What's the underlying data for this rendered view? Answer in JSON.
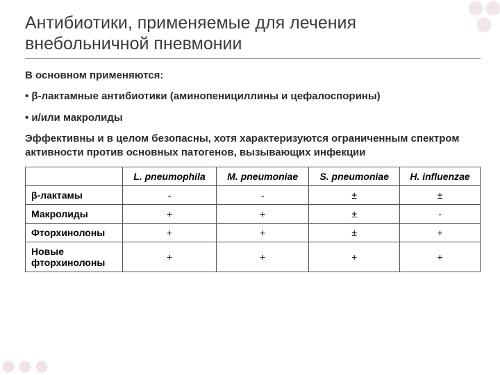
{
  "title": "Антибиотики, применяемые для лечения внебольничной пневмонии",
  "intro": "В основном применяются:",
  "bullet1": "• β-лактамные антибиотики (аминопенициллины и цефалоспорины)",
  "bullet2": "• и/или макролиды",
  "note": "Эффективны и в целом безопасны, хотя характеризуются ограниченным спектром активности против основных патогенов, вызывающих инфекции",
  "table": {
    "columns": [
      "",
      "L. pneumophila",
      "M. pneumoniae",
      "S. pneumoniae",
      "H. influenzae"
    ],
    "rows": [
      {
        "label": "β-лактамы",
        "cells": [
          "-",
          "-",
          "±",
          "±"
        ]
      },
      {
        "label": "Макролиды",
        "cells": [
          "+",
          "+",
          "±",
          "-"
        ]
      },
      {
        "label": "Фторхинолоны",
        "cells": [
          "+",
          "+",
          "±",
          "+"
        ]
      },
      {
        "label": "Новые фторхинолоны",
        "cells": [
          "+",
          "+",
          "+",
          "+"
        ]
      }
    ],
    "border_color": "#555555",
    "header_italic": true,
    "col_widths_pct": [
      21,
      20,
      20,
      20,
      19
    ]
  },
  "colors": {
    "title_color": "#3b3b3b",
    "text_color": "#2a2a2a",
    "background": "#ffffff",
    "accent_bubbles": "#c88ca0"
  },
  "fonts": {
    "title_size_pt": 19,
    "body_size_pt": 11,
    "table_size_pt": 10
  }
}
